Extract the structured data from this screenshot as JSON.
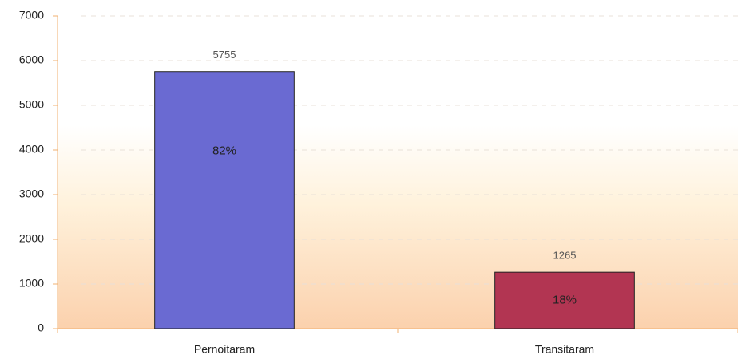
{
  "chart_data": {
    "type": "bar",
    "categories": [
      "Pernoitaram",
      "Transitaram"
    ],
    "values": [
      5755,
      1265
    ],
    "share_labels": [
      "82%",
      "18%"
    ],
    "colors": [
      "#6a6ad2",
      "#b23552"
    ],
    "ylim": [
      0,
      7000
    ],
    "yticks": [
      0,
      1000,
      2000,
      3000,
      4000,
      5000,
      6000,
      7000
    ],
    "grid": true
  }
}
